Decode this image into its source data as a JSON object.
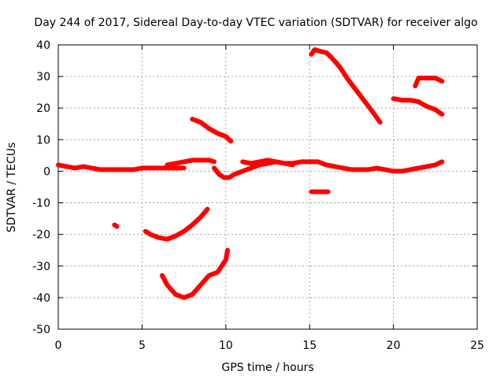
{
  "chart_data": {
    "type": "line",
    "title": "Day 244 of 2017, Sidereal Day-to-day VTEC variation (SDTVAR) for receiver algo",
    "xlabel": "GPS time / hours",
    "ylabel": "SDTVAR / TECUs",
    "xlim": [
      0,
      25
    ],
    "ylim": [
      -50,
      40
    ],
    "xticks": [
      0,
      5,
      10,
      15,
      20,
      25
    ],
    "yticks": [
      -50,
      -40,
      -30,
      -20,
      -10,
      0,
      10,
      20,
      30,
      40
    ],
    "xtick_labels": [
      "0",
      "5",
      "10",
      "15",
      "20",
      "25"
    ],
    "ytick_labels": [
      "-50",
      "-40",
      "-30",
      "-20",
      "-10",
      "0",
      "10",
      "20",
      "30",
      "40"
    ],
    "grid": true,
    "color": "#ff0000",
    "series": [
      {
        "name": "main-band-1",
        "x": [
          0,
          0.5,
          1,
          1.5,
          2,
          2.5,
          3,
          3.5,
          4,
          4.5,
          5,
          5.5,
          6,
          6.5,
          7,
          7.5
        ],
        "y": [
          2,
          1.5,
          1,
          1.5,
          1,
          0.5,
          0.5,
          0.5,
          0.5,
          0.5,
          1,
          1,
          1,
          1,
          1,
          1
        ]
      },
      {
        "name": "main-band-2",
        "x": [
          6.5,
          7,
          7.5,
          8,
          8.5,
          9,
          9.3
        ],
        "y": [
          2,
          2.5,
          3,
          3.5,
          3.5,
          3.5,
          3
        ]
      },
      {
        "name": "main-band-3",
        "x": [
          9.3,
          9.6,
          9.9,
          10.2,
          10.5,
          11,
          11.5,
          12,
          12.5,
          13,
          13.5,
          14
        ],
        "y": [
          1,
          -1,
          -2,
          -2,
          -1,
          0,
          1,
          2,
          2.5,
          3,
          2.5,
          2
        ]
      },
      {
        "name": "main-band-4",
        "x": [
          11,
          11.5,
          12,
          12.5,
          13,
          13.5,
          14,
          14.5,
          15,
          15.5,
          16,
          16.5,
          17,
          17.5,
          18,
          18.5,
          19,
          19.5,
          20,
          20.5,
          21,
          21.5,
          22,
          22.5,
          22.9
        ],
        "y": [
          3,
          2.5,
          3,
          3.5,
          3,
          2.5,
          2.5,
          3,
          3,
          3,
          2,
          1.5,
          1,
          0.5,
          0.5,
          0.5,
          1,
          0.5,
          0,
          0,
          0.5,
          1,
          1.5,
          2,
          3
        ]
      },
      {
        "name": "arc-15h-to-19h",
        "x": [
          15.1,
          15.3,
          15.6,
          16,
          16.3,
          16.8,
          17.3,
          17.8,
          18.3,
          18.8,
          19.2
        ],
        "y": [
          37,
          38.5,
          38,
          37.5,
          36,
          33,
          29,
          25.5,
          22,
          18.5,
          15.5
        ]
      },
      {
        "name": "arc-8h-to-10.3h",
        "x": [
          8,
          8.5,
          9,
          9.5,
          10,
          10.3
        ],
        "y": [
          16.5,
          15.5,
          13.5,
          12,
          11,
          9.5
        ]
      },
      {
        "name": "arc-20h-to-23h",
        "x": [
          20,
          20.5,
          21,
          21.5,
          22,
          22.5,
          22.9
        ],
        "y": [
          23,
          22.5,
          22.5,
          22,
          20.5,
          19.5,
          18
        ]
      },
      {
        "name": "arc-21.3h-to-22.9h",
        "x": [
          21.3,
          21.5,
          22,
          22.5,
          22.9
        ],
        "y": [
          27,
          29.5,
          29.5,
          29.5,
          28.5
        ]
      },
      {
        "name": "arc-5.2h-to-8.9h",
        "x": [
          5.2,
          5.5,
          6,
          6.5,
          7,
          7.5,
          8,
          8.5,
          8.9
        ],
        "y": [
          -19,
          -20,
          -21,
          -21.5,
          -20.5,
          -19,
          -17,
          -14.5,
          -12
        ]
      },
      {
        "name": "arc-6.2h-to-10.1h",
        "x": [
          6.2,
          6.5,
          7,
          7.5,
          8,
          8.5,
          9,
          9.5,
          10,
          10.1
        ],
        "y": [
          -33,
          -36,
          -39,
          -40,
          -39,
          -36,
          -33,
          -32,
          -28,
          -25
        ]
      },
      {
        "name": "segment-15h",
        "x": [
          15.1,
          15.5,
          16,
          16.1
        ],
        "y": [
          -6.5,
          -6.5,
          -6.5,
          -6.5
        ]
      },
      {
        "name": "dot-3.4h",
        "x": [
          3.35,
          3.5
        ],
        "y": [
          -17,
          -17.5
        ]
      }
    ]
  }
}
